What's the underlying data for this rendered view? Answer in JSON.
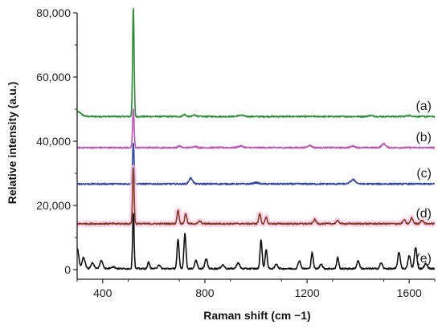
{
  "chart_data": {
    "type": "line",
    "xlabel": "Raman shift (cm −1)",
    "ylabel": "Relative intensity (a.u.)",
    "xlim": [
      300,
      1700
    ],
    "ylim": [
      -3000,
      80000
    ],
    "x_ticks": [
      400,
      800,
      1200,
      1600
    ],
    "x_tick_labels": [
      "400",
      "800",
      "1200",
      "1600"
    ],
    "y_ticks": [
      0,
      20000,
      40000,
      60000,
      80000
    ],
    "y_tick_labels": [
      "0",
      "20,000",
      "40,000",
      "60,000",
      "80,000"
    ],
    "grid": false,
    "legend": "none",
    "series": [
      {
        "name": "(a)",
        "color": "#2e8b3a",
        "baseline": 47700,
        "peaks": [
          [
            300,
            1500,
            15
          ],
          [
            520,
            34000,
            3
          ],
          [
            720,
            600,
            6
          ],
          [
            760,
            500,
            6
          ],
          [
            940,
            400,
            10
          ],
          [
            1450,
            300,
            10
          ],
          [
            1600,
            300,
            10
          ]
        ]
      },
      {
        "name": "(b)",
        "color": "#b855b0",
        "baseline": 38000,
        "peaks": [
          [
            520,
            12000,
            3
          ],
          [
            700,
            500,
            6
          ],
          [
            760,
            400,
            8
          ],
          [
            940,
            500,
            10
          ],
          [
            1210,
            700,
            8
          ],
          [
            1380,
            500,
            8
          ],
          [
            1500,
            1200,
            8
          ]
        ]
      },
      {
        "name": "(c)",
        "color": "#3445a0",
        "baseline": 26700,
        "peaks": [
          [
            520,
            13000,
            3
          ],
          [
            745,
            1800,
            7
          ],
          [
            1000,
            400,
            10
          ],
          [
            1380,
            1300,
            10
          ]
        ]
      },
      {
        "name": "(d)",
        "color": "#8b3c26",
        "baseline": 14300,
        "peaks": [
          [
            520,
            17500,
            3
          ],
          [
            695,
            4200,
            4
          ],
          [
            725,
            3200,
            4
          ],
          [
            780,
            800,
            5
          ],
          [
            1015,
            3200,
            4
          ],
          [
            1040,
            2000,
            4
          ],
          [
            1230,
            1300,
            5
          ],
          [
            1320,
            900,
            6
          ],
          [
            1580,
            1200,
            5
          ],
          [
            1610,
            1800,
            5
          ],
          [
            1650,
            1000,
            6
          ]
        ]
      },
      {
        "name": "(e)",
        "color": "#111111",
        "baseline": 300,
        "peaks": [
          [
            300,
            6500,
            6
          ],
          [
            325,
            3500,
            6
          ],
          [
            360,
            1800,
            6
          ],
          [
            395,
            2500,
            6
          ],
          [
            440,
            600,
            8
          ],
          [
            520,
            17500,
            3
          ],
          [
            580,
            2000,
            4
          ],
          [
            620,
            1200,
            5
          ],
          [
            695,
            9000,
            4
          ],
          [
            722,
            11000,
            4
          ],
          [
            765,
            2500,
            5
          ],
          [
            805,
            3000,
            5
          ],
          [
            870,
            1200,
            6
          ],
          [
            930,
            1800,
            6
          ],
          [
            1020,
            9000,
            4
          ],
          [
            1040,
            6000,
            4
          ],
          [
            1080,
            1500,
            5
          ],
          [
            1170,
            2500,
            5
          ],
          [
            1220,
            5000,
            4
          ],
          [
            1255,
            1500,
            5
          ],
          [
            1320,
            3500,
            4
          ],
          [
            1400,
            2500,
            5
          ],
          [
            1490,
            1800,
            5
          ],
          [
            1560,
            5000,
            5
          ],
          [
            1600,
            4000,
            5
          ],
          [
            1625,
            6500,
            5
          ],
          [
            1665,
            1500,
            6
          ]
        ]
      }
    ],
    "halo": {
      "series": "(d)",
      "color": "#f5c8e6"
    }
  }
}
